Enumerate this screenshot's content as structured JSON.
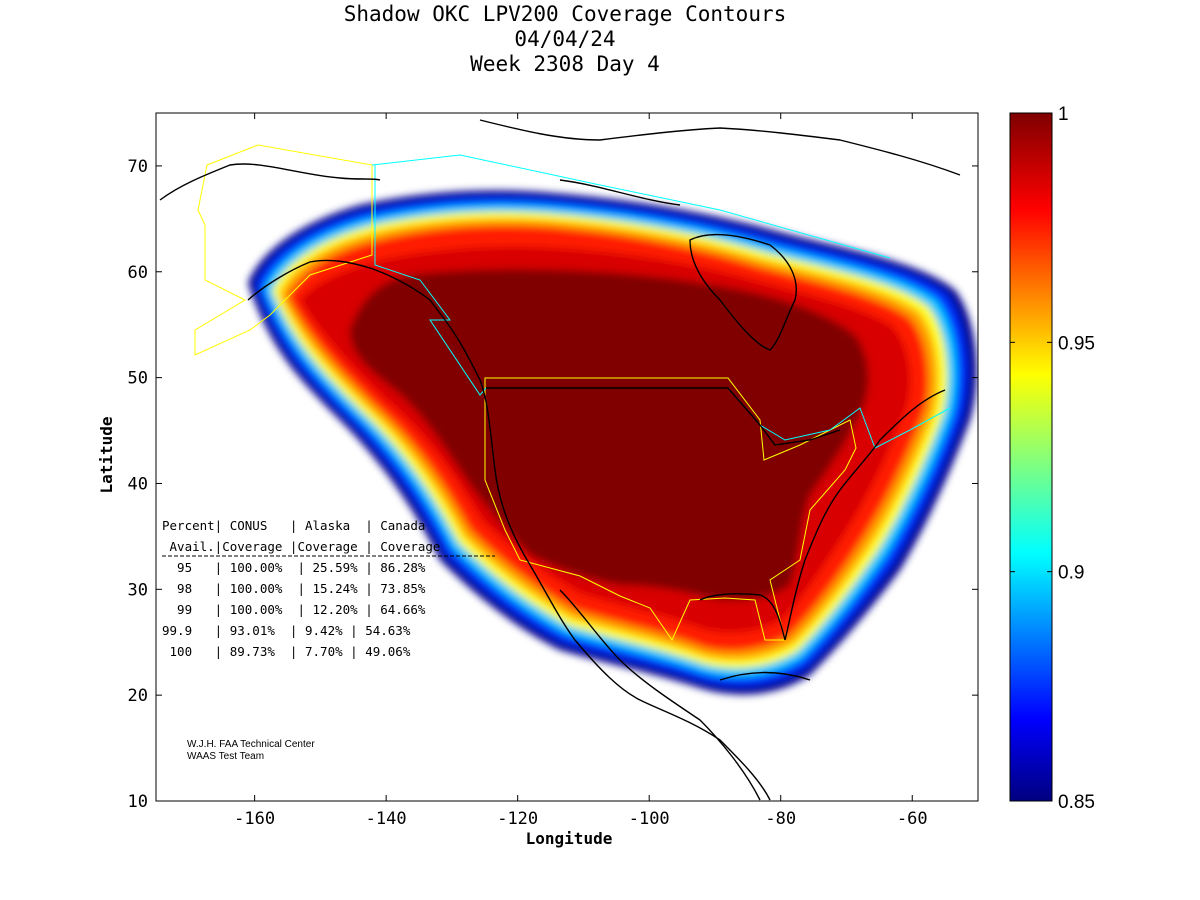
{
  "title": {
    "line1": "Shadow OKC LPV200 Coverage Contours",
    "line2": "04/04/24",
    "line3": "Week 2308 Day 4"
  },
  "map": {
    "xlim": [
      -175,
      -50
    ],
    "ylim": [
      10,
      75
    ],
    "x_ticks": [
      "-160",
      "-140",
      "-120",
      "-100",
      "-80",
      "-60"
    ],
    "x_tick_values": [
      -160,
      -140,
      -120,
      -100,
      -80,
      -60
    ],
    "y_ticks": [
      "10",
      "20",
      "30",
      "40",
      "50",
      "60",
      "70"
    ],
    "y_tick_values": [
      10,
      20,
      30,
      40,
      50,
      60,
      70
    ],
    "xlabel": "Longitude",
    "ylabel": "Latitude",
    "colors": {
      "waas_service_area_outline": "#ffff00",
      "canada_alaska_boundary_outline": "#00ffff"
    }
  },
  "colorbar": {
    "min": 0.85,
    "max": 1,
    "tick_labels": [
      "1",
      "0.95",
      "0.9",
      "0.85"
    ],
    "tick_values": [
      1,
      0.95,
      0.9,
      0.85
    ],
    "colormap": "jet"
  },
  "coverage_table": {
    "header1": "Percent| CONUS   | Alaska  | Canada",
    "header2": " Avail.|Coverage |Coverage | Coverage",
    "rows": [
      "  95   | 100.00%  | 25.59% | 86.28%",
      "  98   | 100.00%  | 15.24% | 73.85%",
      "  99   | 100.00%  | 12.20% | 64.66%",
      "99.9   | 93.01%  | 9.42% | 54.63%",
      " 100   | 89.73%  | 7.70% | 49.06%"
    ]
  },
  "credit": {
    "line1": "W.J.H. FAA Technical Center",
    "line2": "WAAS Test Team"
  }
}
